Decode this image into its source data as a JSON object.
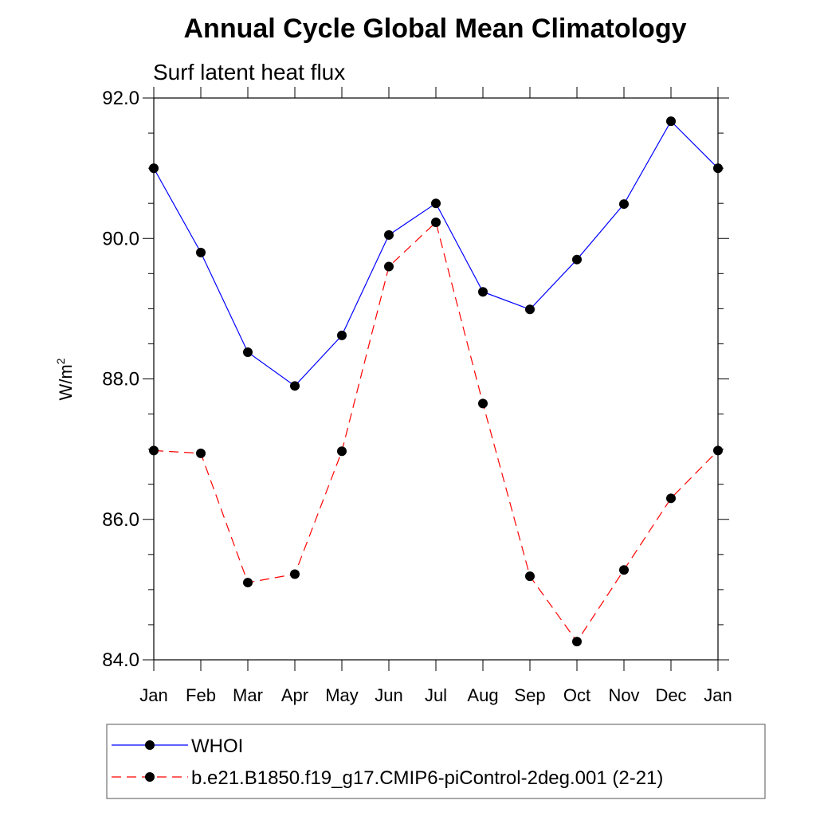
{
  "chart_data": {
    "type": "line",
    "title": "Annual Cycle Global Mean Climatology",
    "subtitle": "Surf latent heat flux",
    "ylabel_base": "W/m",
    "ylabel_sup": "2",
    "xlabel": "",
    "categories": [
      "Jan",
      "Feb",
      "Mar",
      "Apr",
      "May",
      "Jun",
      "Jul",
      "Aug",
      "Sep",
      "Oct",
      "Nov",
      "Dec",
      "Jan"
    ],
    "ylim": [
      84.0,
      92.0
    ],
    "yticks": [
      "84.0",
      "86.0",
      "88.0",
      "90.0",
      "92.0"
    ],
    "ytick_values": [
      84,
      86,
      88,
      90,
      92
    ],
    "series": [
      {
        "name": "WHOI",
        "color": "#0000ff",
        "dash": "solid",
        "values": [
          91.0,
          89.8,
          88.38,
          87.9,
          88.62,
          90.05,
          90.5,
          89.24,
          88.99,
          89.7,
          90.49,
          91.67,
          91.0
        ]
      },
      {
        "name": "b.e21.B1850.f19_g17.CMIP6-piControl-2deg.001 (2-21)",
        "color": "#ff0000",
        "dash": "dashed",
        "values": [
          86.98,
          86.94,
          85.1,
          85.22,
          86.97,
          89.6,
          90.23,
          87.65,
          85.19,
          84.26,
          85.28,
          86.3,
          86.98
        ]
      }
    ],
    "legend_position": "bottom",
    "grid": false
  }
}
